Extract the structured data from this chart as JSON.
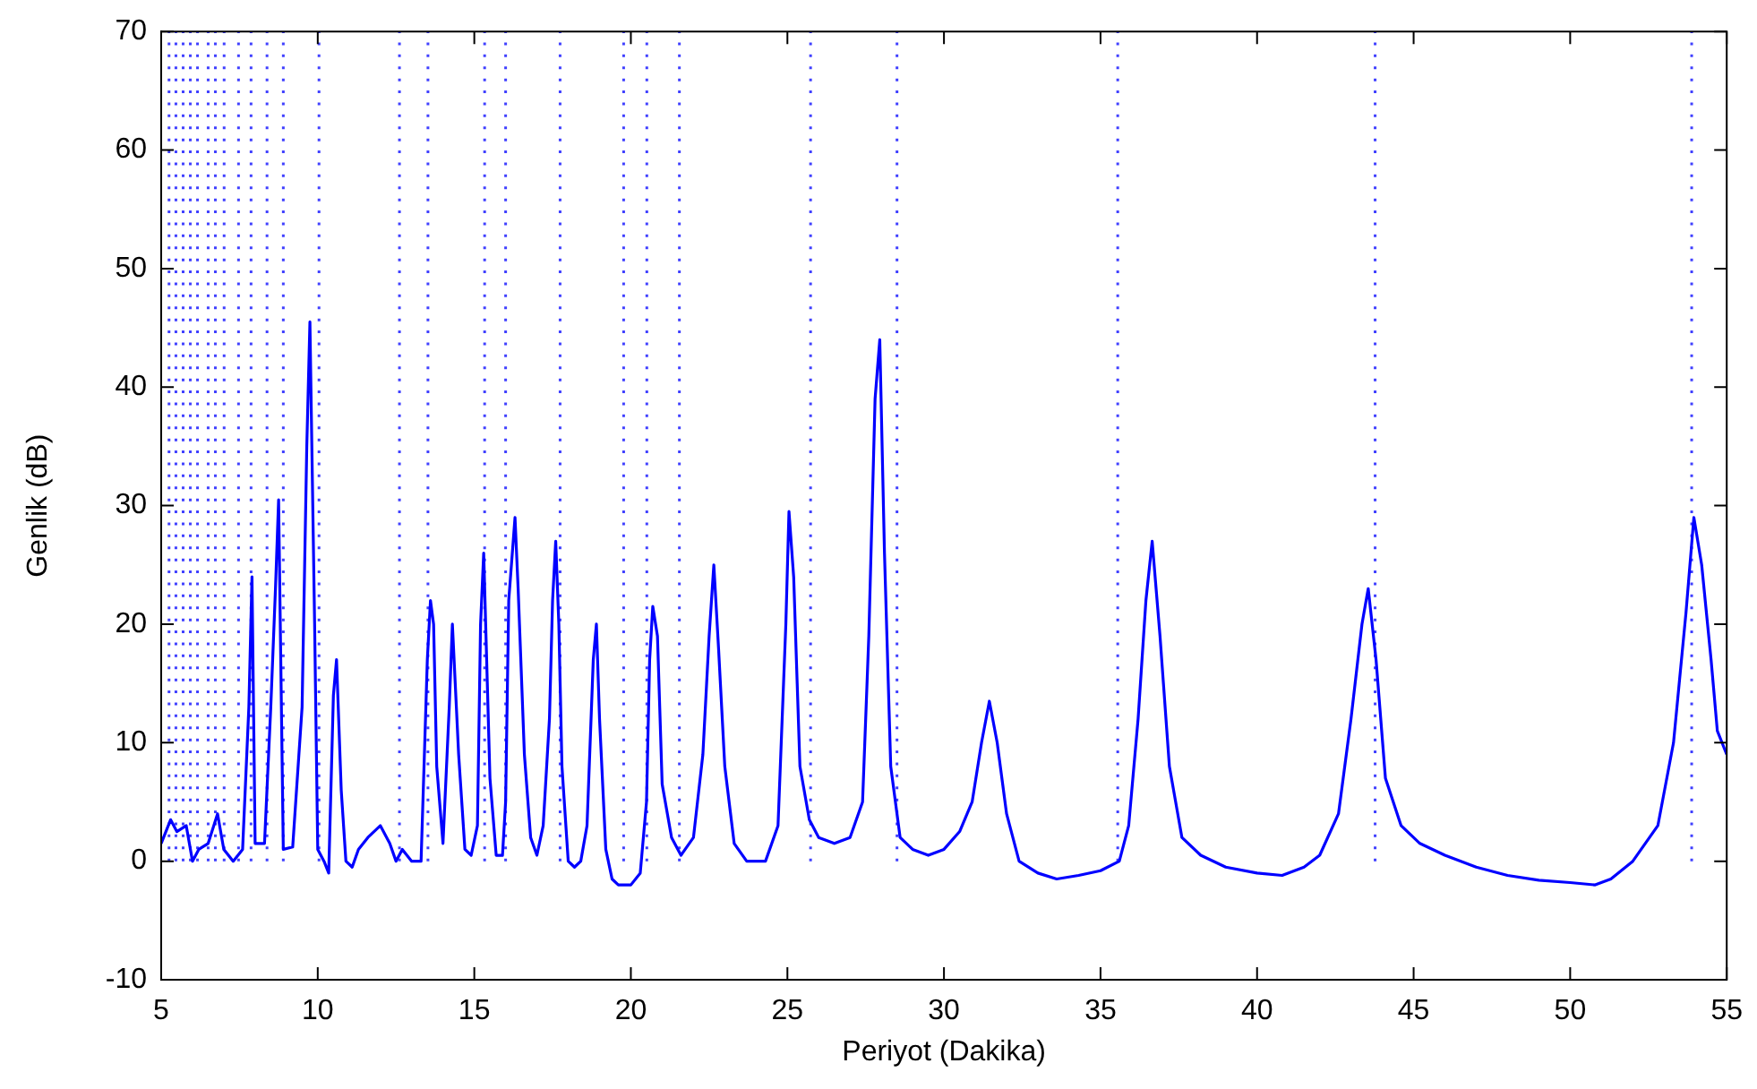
{
  "chart_data": {
    "type": "line",
    "xlabel": "Periyot (Dakika)",
    "ylabel": "Genlik (dB)",
    "x": [
      5.0,
      5.3,
      5.5,
      5.8,
      6.0,
      6.2,
      6.5,
      6.8,
      7.0,
      7.3,
      7.6,
      7.8,
      7.9,
      8.0,
      8.3,
      8.5,
      8.65,
      8.75,
      8.9,
      9.2,
      9.5,
      9.65,
      9.75,
      9.9,
      10.0,
      10.2,
      10.35,
      10.5,
      10.6,
      10.75,
      10.9,
      11.1,
      11.3,
      11.6,
      12.0,
      12.3,
      12.5,
      12.7,
      13.0,
      13.3,
      13.5,
      13.6,
      13.7,
      13.8,
      14.0,
      14.2,
      14.3,
      14.5,
      14.7,
      14.9,
      15.1,
      15.2,
      15.3,
      15.5,
      15.7,
      15.9,
      16.0,
      16.1,
      16.3,
      16.4,
      16.6,
      16.8,
      17.0,
      17.2,
      17.4,
      17.5,
      17.6,
      17.7,
      17.8,
      18.0,
      18.2,
      18.4,
      18.6,
      18.8,
      18.9,
      19.0,
      19.2,
      19.4,
      19.6,
      20.0,
      20.3,
      20.5,
      20.6,
      20.7,
      20.85,
      21.0,
      21.3,
      21.6,
      22.0,
      22.3,
      22.5,
      22.65,
      22.8,
      23.0,
      23.3,
      23.7,
      24.3,
      24.7,
      24.95,
      25.05,
      25.2,
      25.4,
      25.7,
      26.0,
      26.5,
      27.0,
      27.4,
      27.6,
      27.8,
      27.95,
      28.1,
      28.3,
      28.6,
      29.0,
      29.5,
      30.0,
      30.5,
      30.9,
      31.2,
      31.45,
      31.7,
      32.0,
      32.4,
      33.0,
      33.6,
      34.3,
      35.0,
      35.6,
      35.9,
      36.2,
      36.45,
      36.65,
      36.9,
      37.2,
      37.6,
      38.2,
      39.0,
      40.0,
      40.8,
      41.5,
      42.0,
      42.6,
      43.0,
      43.35,
      43.55,
      43.8,
      44.1,
      44.6,
      45.2,
      46.0,
      47.0,
      48.0,
      49.0,
      50.0,
      50.8,
      51.3,
      52.0,
      52.8,
      53.3,
      53.7,
      53.95,
      54.2,
      54.5,
      54.7,
      55.0
    ],
    "series": [
      {
        "color": "#0000ff",
        "values": [
          1.5,
          3.5,
          2.5,
          3,
          0,
          1,
          1.5,
          4,
          1,
          0,
          1,
          13,
          24,
          1.5,
          1.5,
          13,
          23,
          30.5,
          1,
          1.2,
          13,
          35,
          45.5,
          20,
          1,
          0,
          -1,
          14,
          17,
          6,
          0,
          -0.5,
          1,
          2,
          3,
          1.5,
          0,
          1,
          0,
          0,
          17,
          22,
          20,
          8,
          1.5,
          13,
          20,
          9,
          1,
          0.5,
          3,
          20,
          26,
          7,
          0.5,
          0.5,
          5,
          22,
          29,
          23,
          9,
          2,
          0.5,
          3,
          12,
          22,
          27,
          20,
          8,
          0,
          -0.5,
          0,
          3,
          17,
          20,
          12,
          1,
          -1.5,
          -2,
          -2,
          -1,
          5,
          17,
          21.5,
          19,
          6.5,
          2,
          0.5,
          2,
          9,
          19,
          25,
          18,
          8,
          1.5,
          0,
          0,
          3,
          20,
          29.5,
          24,
          8,
          3.5,
          2,
          1.5,
          2,
          5,
          19,
          39,
          44,
          26,
          8,
          2,
          1,
          0.5,
          1,
          2.5,
          5,
          10,
          13.5,
          10,
          4,
          0,
          -1,
          -1.5,
          -1.2,
          -0.8,
          0,
          3,
          12,
          22,
          27,
          19,
          8,
          2,
          0.5,
          -0.5,
          -1,
          -1.2,
          -0.5,
          0.5,
          4,
          12,
          20,
          23,
          17,
          7,
          3,
          1.5,
          0.5,
          -0.5,
          -1.2,
          -1.6,
          -1.8,
          -2,
          -1.5,
          0,
          3,
          10,
          21,
          29,
          25,
          17,
          11,
          9
        ]
      }
    ],
    "xlim": [
      5,
      55
    ],
    "xticks": [
      5,
      10,
      15,
      20,
      25,
      30,
      35,
      40,
      45,
      50,
      55
    ],
    "ylim": [
      -10,
      70
    ],
    "yticks": [
      -10,
      0,
      10,
      20,
      30,
      40,
      50,
      60,
      70
    ],
    "grid": false,
    "legend": false,
    "marker": "none",
    "line_style": "solid",
    "ref_lines": [
      {
        "axis": "x",
        "value": 5.25,
        "color": "#4040ff",
        "line_style": "dotted"
      },
      {
        "axis": "x",
        "value": 5.47,
        "color": "#4040ff",
        "line_style": "dotted"
      },
      {
        "axis": "x",
        "value": 5.7,
        "color": "#4040ff",
        "line_style": "dotted"
      },
      {
        "axis": "x",
        "value": 5.93,
        "color": "#4040ff",
        "line_style": "dotted"
      },
      {
        "axis": "x",
        "value": 6.16,
        "color": "#4040ff",
        "line_style": "dotted"
      },
      {
        "axis": "x",
        "value": 6.5,
        "color": "#4040ff",
        "line_style": "dotted"
      },
      {
        "axis": "x",
        "value": 6.73,
        "color": "#4040ff",
        "line_style": "dotted"
      },
      {
        "axis": "x",
        "value": 7.01,
        "color": "#4040ff",
        "line_style": "dotted"
      },
      {
        "axis": "x",
        "value": 7.47,
        "color": "#4040ff",
        "line_style": "dotted"
      },
      {
        "axis": "x",
        "value": 7.87,
        "color": "#4040ff",
        "line_style": "dotted"
      },
      {
        "axis": "x",
        "value": 8.38,
        "color": "#4040ff",
        "line_style": "dotted"
      },
      {
        "axis": "x",
        "value": 8.9,
        "color": "#4040ff",
        "line_style": "dotted"
      },
      {
        "axis": "x",
        "value": 10.04,
        "color": "#4040ff",
        "line_style": "dotted"
      },
      {
        "axis": "x",
        "value": 12.61,
        "color": "#4040ff",
        "line_style": "dotted"
      },
      {
        "axis": "x",
        "value": 13.52,
        "color": "#4040ff",
        "line_style": "dotted"
      },
      {
        "axis": "x",
        "value": 15.33,
        "color": "#4040ff",
        "line_style": "dotted"
      },
      {
        "axis": "x",
        "value": 16.0,
        "color": "#4040ff",
        "line_style": "dotted"
      },
      {
        "axis": "x",
        "value": 17.74,
        "color": "#4040ff",
        "line_style": "dotted"
      },
      {
        "axis": "x",
        "value": 19.77,
        "color": "#4040ff",
        "line_style": "dotted"
      },
      {
        "axis": "x",
        "value": 20.51,
        "color": "#4040ff",
        "line_style": "dotted"
      },
      {
        "axis": "x",
        "value": 21.55,
        "color": "#4040ff",
        "line_style": "dotted"
      },
      {
        "axis": "x",
        "value": 25.74,
        "color": "#4040ff",
        "line_style": "dotted"
      },
      {
        "axis": "x",
        "value": 28.5,
        "color": "#4040ff",
        "line_style": "dotted"
      },
      {
        "axis": "x",
        "value": 35.55,
        "color": "#4040ff",
        "line_style": "dotted"
      },
      {
        "axis": "x",
        "value": 43.77,
        "color": "#4040ff",
        "line_style": "dotted"
      },
      {
        "axis": "x",
        "value": 53.88,
        "color": "#4040ff",
        "line_style": "dotted"
      }
    ]
  }
}
